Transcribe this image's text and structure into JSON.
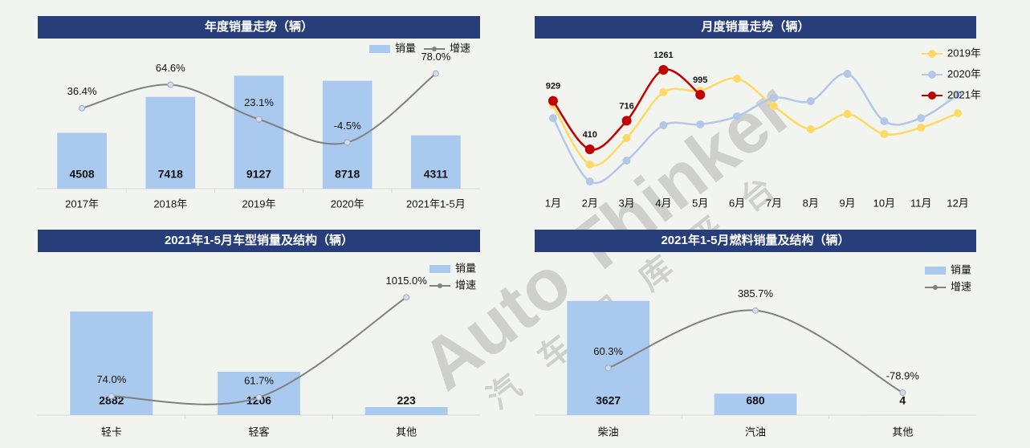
{
  "watermark": {
    "text": "Auto Thinker",
    "subtext": "汽车智库平台"
  },
  "chart_data": [
    {
      "type": "combo",
      "title": "年度销量走势（辆）",
      "categories": [
        "2017年",
        "2018年",
        "2019年",
        "2020年",
        "2021年1-5月"
      ],
      "series": [
        {
          "name": "销量",
          "color": "#a9c9ef",
          "values": [
            4508,
            7418,
            9127,
            8718,
            4311
          ]
        },
        {
          "name": "增速",
          "color": "#808080",
          "axis": "y2",
          "values": [
            36.4,
            64.6,
            23.1,
            -4.5,
            78.0
          ],
          "value_labels": [
            "36.4%",
            "64.6%",
            "23.1%",
            "-4.5%",
            "78.0%"
          ]
        }
      ],
      "ylim": [
        0,
        12000
      ],
      "y2lim": [
        -60,
        118
      ],
      "legend": "top-right"
    },
    {
      "type": "line",
      "title": "月度销量走势（辆）",
      "categories": [
        "1月",
        "2月",
        "3月",
        "4月",
        "5月",
        "6月",
        "7月",
        "8月",
        "9月",
        "10月",
        "11月",
        "12月"
      ],
      "series": [
        {
          "name": "2019年",
          "color": "#ffd966",
          "values": [
            883,
            247,
            531,
            1021,
            1038,
            1167,
            874,
            625,
            788,
            574,
            642,
            797
          ]
        },
        {
          "name": "2020年",
          "color": "#b4c7e7",
          "values": [
            744,
            66,
            290,
            668,
            677,
            763,
            960,
            926,
            1218,
            711,
            744,
            995
          ]
        },
        {
          "name": "2021年",
          "color": "#c00000",
          "values": [
            929,
            410,
            716,
            1261,
            995,
            null,
            null,
            null,
            null,
            null,
            null,
            null
          ],
          "labeled": true
        }
      ],
      "ylim": [
        -54,
        1622
      ],
      "legend": "top-right"
    },
    {
      "type": "combo",
      "title": "2021年1-5月车型销量及结构（辆）",
      "categories": [
        "轻卡",
        "轻客",
        "其他"
      ],
      "series": [
        {
          "name": "销量",
          "color": "#a9c9ef",
          "values": [
            2882,
            1206,
            223
          ]
        },
        {
          "name": "增速",
          "color": "#808080",
          "axis": "y2",
          "values": [
            74.0,
            61.7,
            1015.0
          ],
          "value_labels": [
            "74.0%",
            "61.7%",
            "1015.0%"
          ]
        }
      ],
      "ylim": [
        0,
        4400
      ],
      "y2lim": [
        -107,
        1400
      ],
      "legend": "top-right"
    },
    {
      "type": "combo",
      "title": "2021年1-5月燃料销量及结构（辆）",
      "categories": [
        "柴油",
        "汽油",
        "其他"
      ],
      "series": [
        {
          "name": "销量",
          "color": "#a9c9ef",
          "values": [
            3627,
            680,
            4
          ]
        },
        {
          "name": "增速",
          "color": "#808080",
          "axis": "y2",
          "values": [
            60.3,
            385.7,
            -78.9
          ],
          "value_labels": [
            "60.3%",
            "385.7%",
            "-78.9%"
          ]
        }
      ],
      "ylim": [
        0,
        5000
      ],
      "y2lim": [
        -206,
        684
      ],
      "legend": "top-right"
    }
  ]
}
